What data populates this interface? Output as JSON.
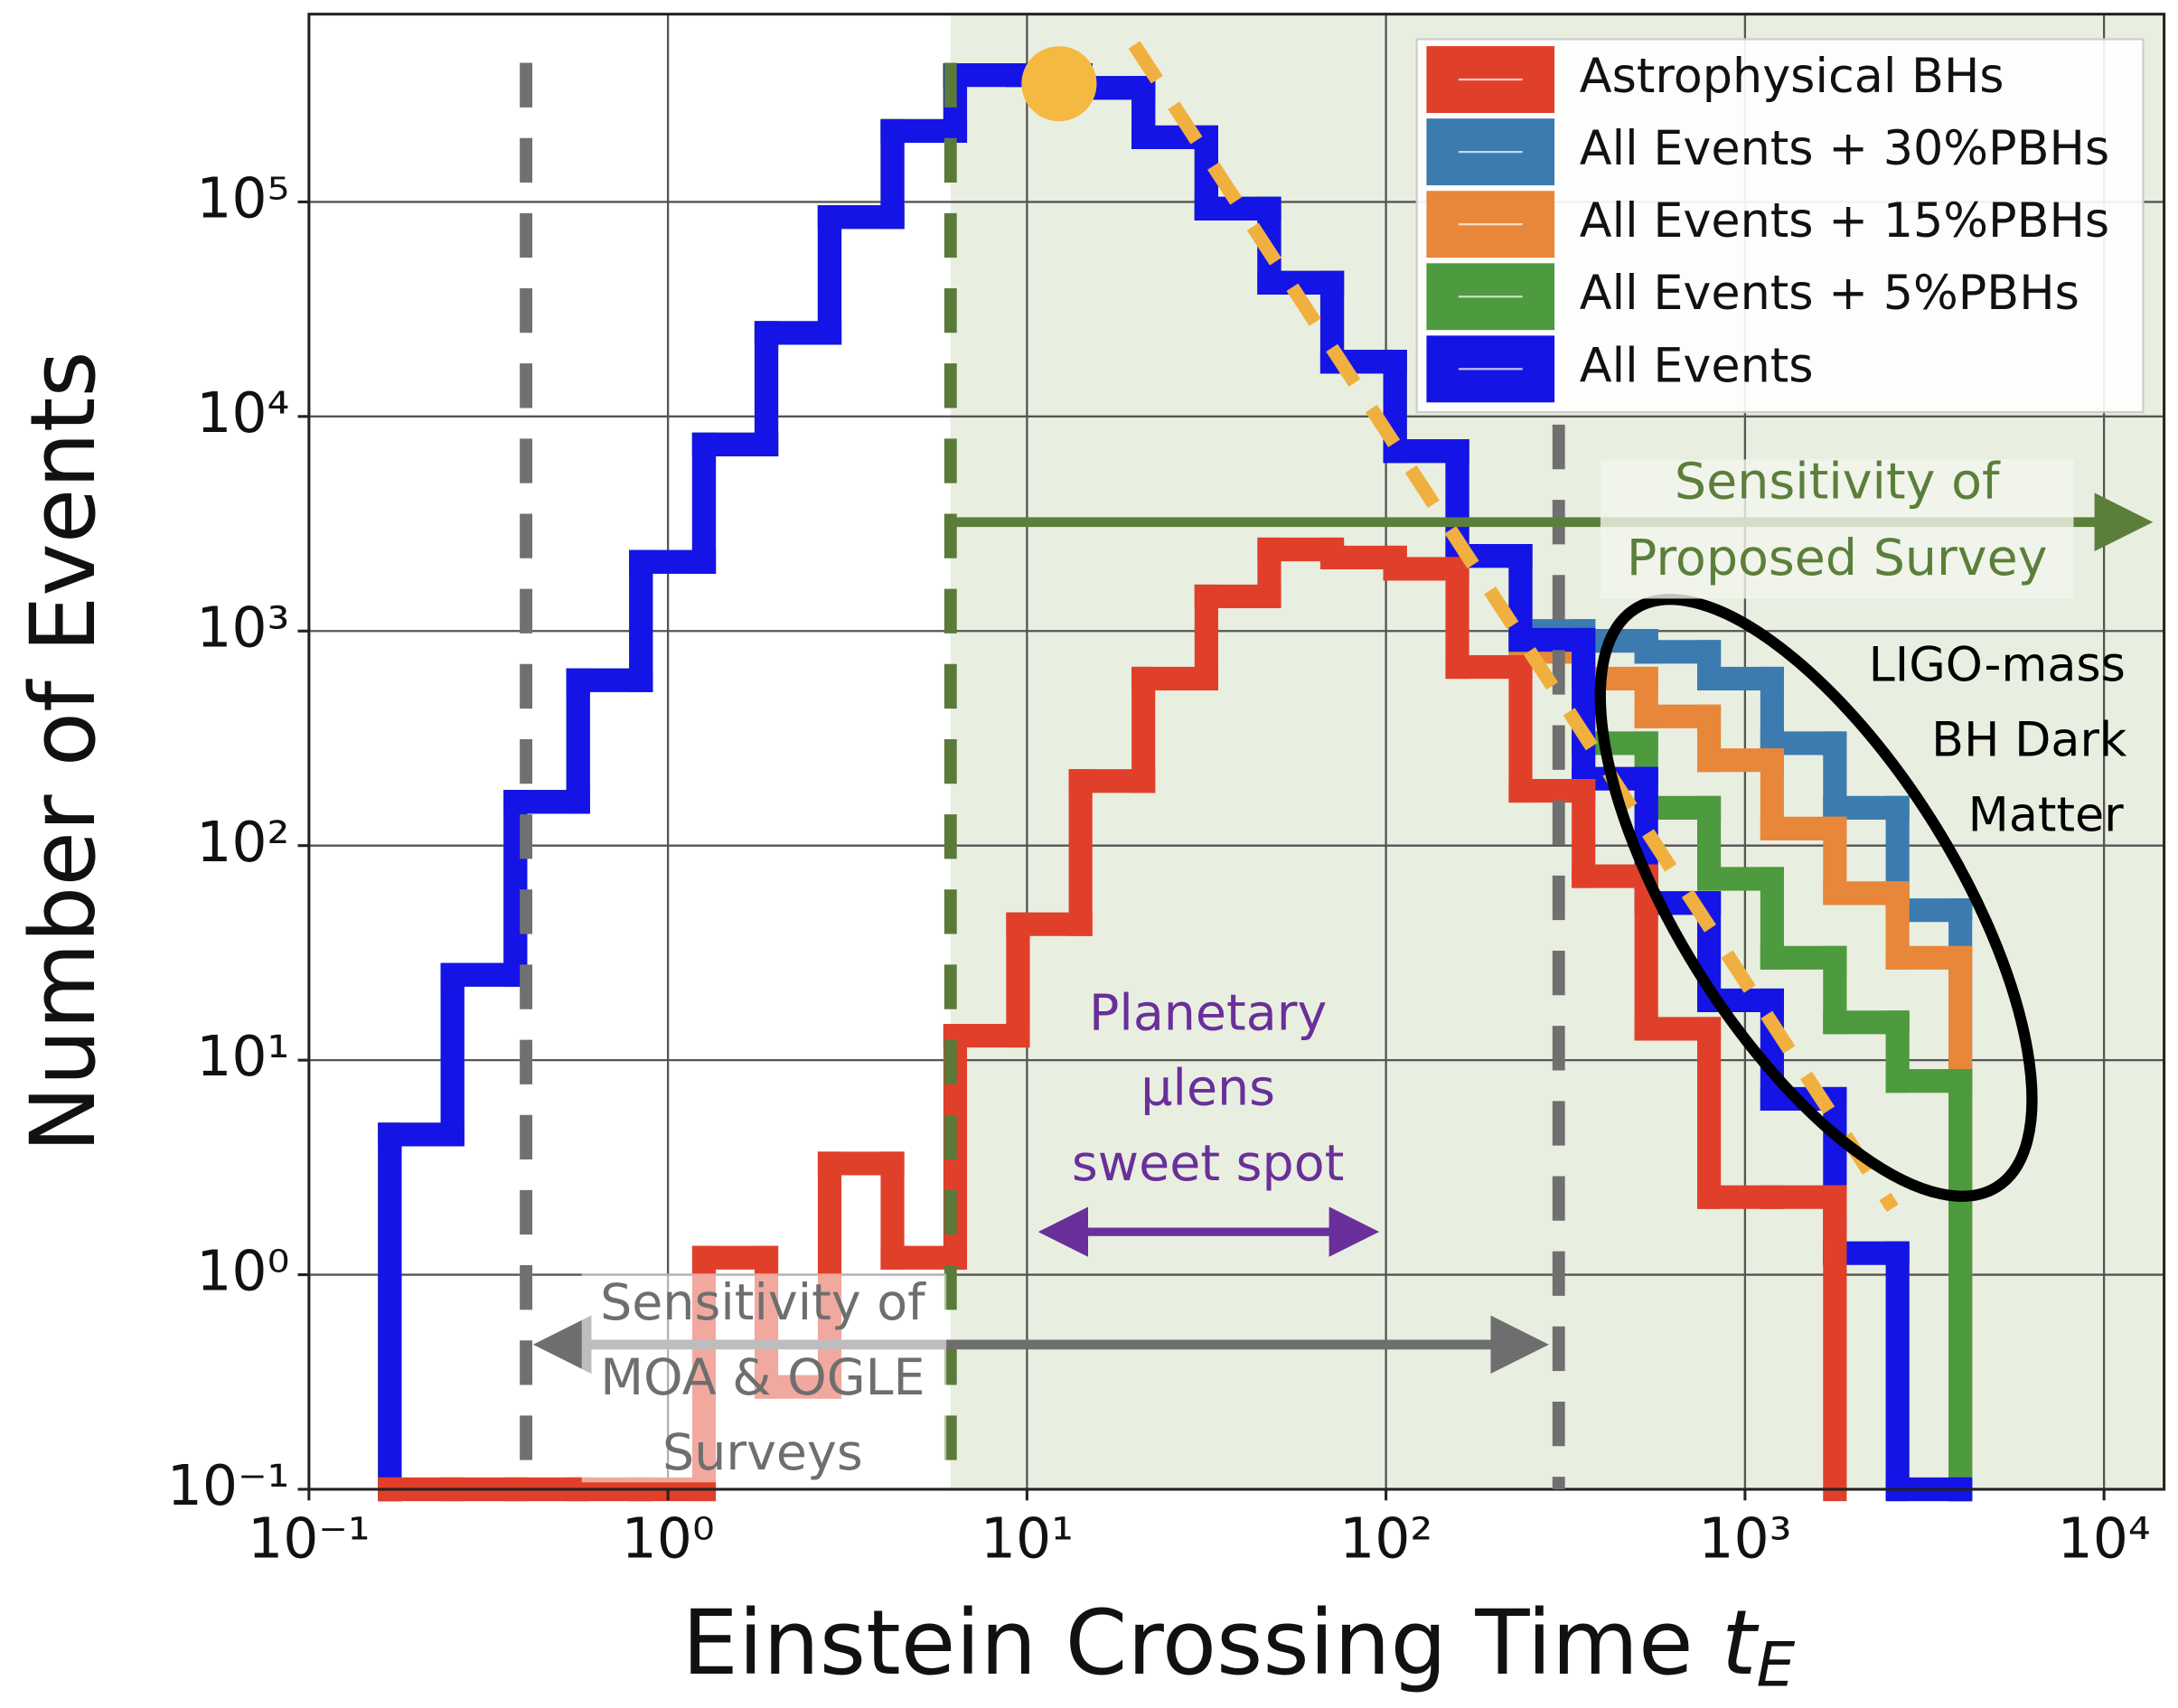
{
  "chart_data": {
    "type": "histogram",
    "x_label": {
      "text": "Einstein Crossing Time",
      "symbol": "t",
      "subscript": "E"
    },
    "y_label": "Number of Events",
    "xscale": "log",
    "yscale": "log",
    "grid": true,
    "legend": "upper right",
    "xlim": [
      0.1,
      14700
    ],
    "ylim": [
      0.1,
      750000
    ],
    "xticks": [
      {
        "value": 0.1,
        "label": "10⁻¹"
      },
      {
        "value": 1,
        "label": "10⁰"
      },
      {
        "value": 10,
        "label": "10¹"
      },
      {
        "value": 100,
        "label": "10²"
      },
      {
        "value": 1000,
        "label": "10³"
      },
      {
        "value": 10000,
        "label": "10⁴"
      }
    ],
    "yticks": [
      {
        "value": 0.1,
        "label": "10⁻¹"
      },
      {
        "value": 1,
        "label": "10⁰"
      },
      {
        "value": 10,
        "label": "10¹"
      },
      {
        "value": 100,
        "label": "10²"
      },
      {
        "value": 1000,
        "label": "10³"
      },
      {
        "value": 10000,
        "label": "10⁴"
      },
      {
        "value": 100000,
        "label": "10⁵"
      }
    ],
    "bins": [
      0.168,
      0.251,
      0.376,
      0.562,
      0.841,
      1.26,
      1.88,
      2.82,
      4.22,
      6.31,
      9.44,
      14.1,
      21.1,
      31.6,
      47.3,
      70.8,
      106,
      158,
      237,
      355,
      531,
      794,
      1190,
      1780,
      2660,
      3980
    ],
    "series": [
      {
        "name": "Astrophysical BHs",
        "color": "#e0402a",
        "values": [
          0.1,
          0.1,
          0.1,
          0.1,
          0.1,
          1.2,
          0.3,
          3.3,
          1.2,
          13,
          43,
          200,
          600,
          1450,
          2400,
          2200,
          1950,
          680,
          180,
          72,
          14,
          2.3,
          2.3,
          null,
          null
        ]
      },
      {
        "name": "All Events + 30%PBHs",
        "color": "#3b7bb0",
        "values": [
          4.5,
          25,
          160,
          590,
          2100,
          7400,
          24500,
          85000,
          214000,
          390000,
          390000,
          340000,
          200000,
          93000,
          42000,
          18000,
          6900,
          2240,
          1000,
          900,
          800,
          600,
          300,
          150,
          50
        ]
      },
      {
        "name": "All Events + 15%PBHs",
        "color": "#e8873a",
        "values": [
          4.5,
          25,
          160,
          590,
          2100,
          7400,
          24500,
          85000,
          214000,
          390000,
          390000,
          340000,
          200000,
          93000,
          42000,
          18000,
          6900,
          2240,
          800,
          600,
          400,
          250,
          120,
          60,
          30
        ]
      },
      {
        "name": "All Events + 5%PBHs",
        "color": "#4e9a3e",
        "values": [
          4.5,
          25,
          160,
          590,
          2100,
          7400,
          24500,
          85000,
          214000,
          390000,
          390000,
          340000,
          200000,
          93000,
          42000,
          18000,
          6900,
          2240,
          910,
          300,
          150,
          70,
          30,
          15,
          8
        ]
      },
      {
        "name": "All Events",
        "color": "#1414e6",
        "values": [
          4.5,
          25,
          160,
          590,
          2100,
          7400,
          24500,
          85000,
          214000,
          390000,
          390000,
          340000,
          200000,
          93000,
          42000,
          18000,
          6900,
          2240,
          910,
          205,
          54,
          19,
          6.6,
          1.26,
          0.1
        ]
      }
    ],
    "annotations": {
      "proposed": [
        "Sensitivity of",
        "Proposed Survey"
      ],
      "ligo": [
        "LIGO-mass",
        "BH Dark",
        "Matter"
      ],
      "planetary": [
        "Planetary",
        "μlens",
        "sweet spot"
      ],
      "moa": [
        "Sensitivity of",
        "MOA & OGLE",
        "Surveys"
      ]
    }
  }
}
